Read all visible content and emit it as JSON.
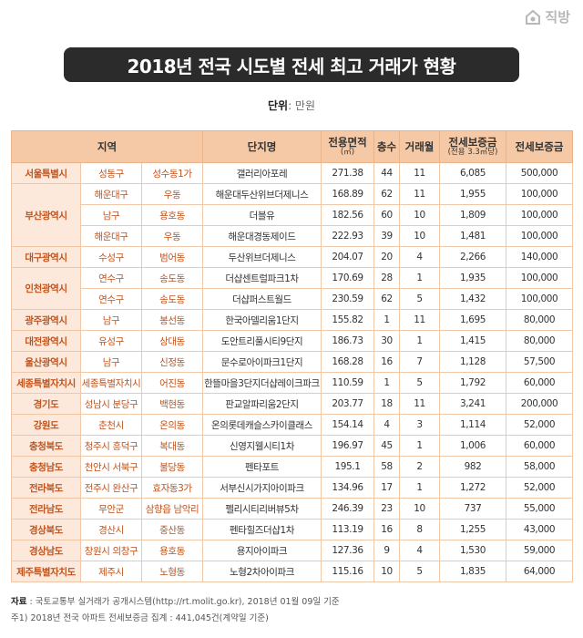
{
  "logo": "직방",
  "title": "2018년 전국 시도별 전세 최고 거래가 현황",
  "unit": {
    "label": "단위",
    "value": ": 만원"
  },
  "table": {
    "headers": {
      "region": "지역",
      "name": "단지명",
      "area": "전용면적",
      "area_unit": "(㎡)",
      "floor": "층수",
      "month": "거래월",
      "per": "전세보증금",
      "per_unit": "(전용 3.3㎡당)",
      "deposit": "전세보증금"
    },
    "rows": [
      {
        "region": "서울특별시",
        "gu": "성동구",
        "dong": "성수동1가",
        "name": "갤러리아포레",
        "area": "271.38",
        "floor": "44",
        "month": "11",
        "per": "6,085",
        "deposit": "500,000"
      },
      {
        "region": "부산광역시",
        "gu": "해운대구",
        "dong": "우동",
        "name": "해운대두산위브더제니스",
        "area": "168.89",
        "floor": "62",
        "month": "11",
        "per": "1,955",
        "deposit": "100,000"
      },
      {
        "gu": "남구",
        "dong": "용호동",
        "name": "더블유",
        "area": "182.56",
        "floor": "60",
        "month": "10",
        "per": "1,809",
        "deposit": "100,000"
      },
      {
        "gu": "해운대구",
        "dong": "우동",
        "name": "해운대경동제이드",
        "area": "222.93",
        "floor": "39",
        "month": "10",
        "per": "1,481",
        "deposit": "100,000"
      },
      {
        "region": "대구광역시",
        "gu": "수성구",
        "dong": "범어동",
        "name": "두산위브더제니스",
        "area": "204.07",
        "floor": "20",
        "month": "4",
        "per": "2,266",
        "deposit": "140,000"
      },
      {
        "region": "인천광역시",
        "gu": "연수구",
        "dong": "송도동",
        "name": "더샵센트럴파크1차",
        "area": "170.69",
        "floor": "28",
        "month": "1",
        "per": "1,935",
        "deposit": "100,000"
      },
      {
        "gu": "연수구",
        "dong": "송도동",
        "name": "더샵퍼스트월드",
        "area": "230.59",
        "floor": "62",
        "month": "5",
        "per": "1,432",
        "deposit": "100,000"
      },
      {
        "region": "광주광역시",
        "gu": "남구",
        "dong": "봉선동",
        "name": "한국아델리움1단지",
        "area": "155.82",
        "floor": "1",
        "month": "11",
        "per": "1,695",
        "deposit": "80,000"
      },
      {
        "region": "대전광역시",
        "gu": "유성구",
        "dong": "상대동",
        "name": "도안트리풀시티9단지",
        "area": "186.73",
        "floor": "30",
        "month": "1",
        "per": "1,415",
        "deposit": "80,000"
      },
      {
        "region": "울산광역시",
        "gu": "남구",
        "dong": "신정동",
        "name": "문수로아이파크1단지",
        "area": "168.28",
        "floor": "16",
        "month": "7",
        "per": "1,128",
        "deposit": "57,500"
      },
      {
        "region": "세종특별자치시",
        "gu": "세종특별자치시",
        "dong": "어진동",
        "name": "한뜰마을3단지더샵레이크파크",
        "area": "110.59",
        "floor": "1",
        "month": "5",
        "per": "1,792",
        "deposit": "60,000"
      },
      {
        "region": "경기도",
        "gu": "성남시 분당구",
        "dong": "백현동",
        "name": "판교알파리움2단지",
        "area": "203.77",
        "floor": "18",
        "month": "11",
        "per": "3,241",
        "deposit": "200,000"
      },
      {
        "region": "강원도",
        "gu": "춘천시",
        "dong": "온의동",
        "name": "온의롯데캐슬스카이클래스",
        "area": "154.14",
        "floor": "4",
        "month": "3",
        "per": "1,114",
        "deposit": "52,000"
      },
      {
        "region": "충청북도",
        "gu": "청주시 흥덕구",
        "dong": "복대동",
        "name": "신영지웰시티1차",
        "area": "196.97",
        "floor": "45",
        "month": "1",
        "per": "1,006",
        "deposit": "60,000"
      },
      {
        "region": "충청남도",
        "gu": "천안시 서북구",
        "dong": "불당동",
        "name": "펜타포트",
        "area": "195.1",
        "floor": "58",
        "month": "2",
        "per": "982",
        "deposit": "58,000"
      },
      {
        "region": "전라북도",
        "gu": "전주시 완산구",
        "dong": "효자동3가",
        "name": "서부신시가지아이파크",
        "area": "134.96",
        "floor": "17",
        "month": "1",
        "per": "1,272",
        "deposit": "52,000"
      },
      {
        "region": "전라남도",
        "gu": "무안군",
        "dong": "삼향읍 남악리",
        "name": "펠리시티리버뷰5차",
        "area": "246.39",
        "floor": "23",
        "month": "10",
        "per": "737",
        "deposit": "55,000"
      },
      {
        "region": "경상북도",
        "gu": "경산시",
        "dong": "중산동",
        "name": "펜타힐즈더샵1차",
        "area": "113.19",
        "floor": "16",
        "month": "8",
        "per": "1,255",
        "deposit": "43,000"
      },
      {
        "region": "경상남도",
        "gu": "창원시 의창구",
        "dong": "용호동",
        "name": "용지아이파크",
        "area": "127.36",
        "floor": "9",
        "month": "4",
        "per": "1,530",
        "deposit": "59,000"
      },
      {
        "region": "제주특별자치도",
        "gu": "제주시",
        "dong": "노형동",
        "name": "노형2차아이파크",
        "area": "115.16",
        "floor": "10",
        "month": "5",
        "per": "1,835",
        "deposit": "64,000"
      }
    ]
  },
  "notes": {
    "source_label": "자료",
    "source": " : 국토교통부 실거래가 공개시스템(http://rt.molit.go.kr), 2018년 01월 09일 기준",
    "note1": "주1) 2018년 전국 아파트 전세보증금 집계 : 441,045건(계약일 기준)"
  }
}
